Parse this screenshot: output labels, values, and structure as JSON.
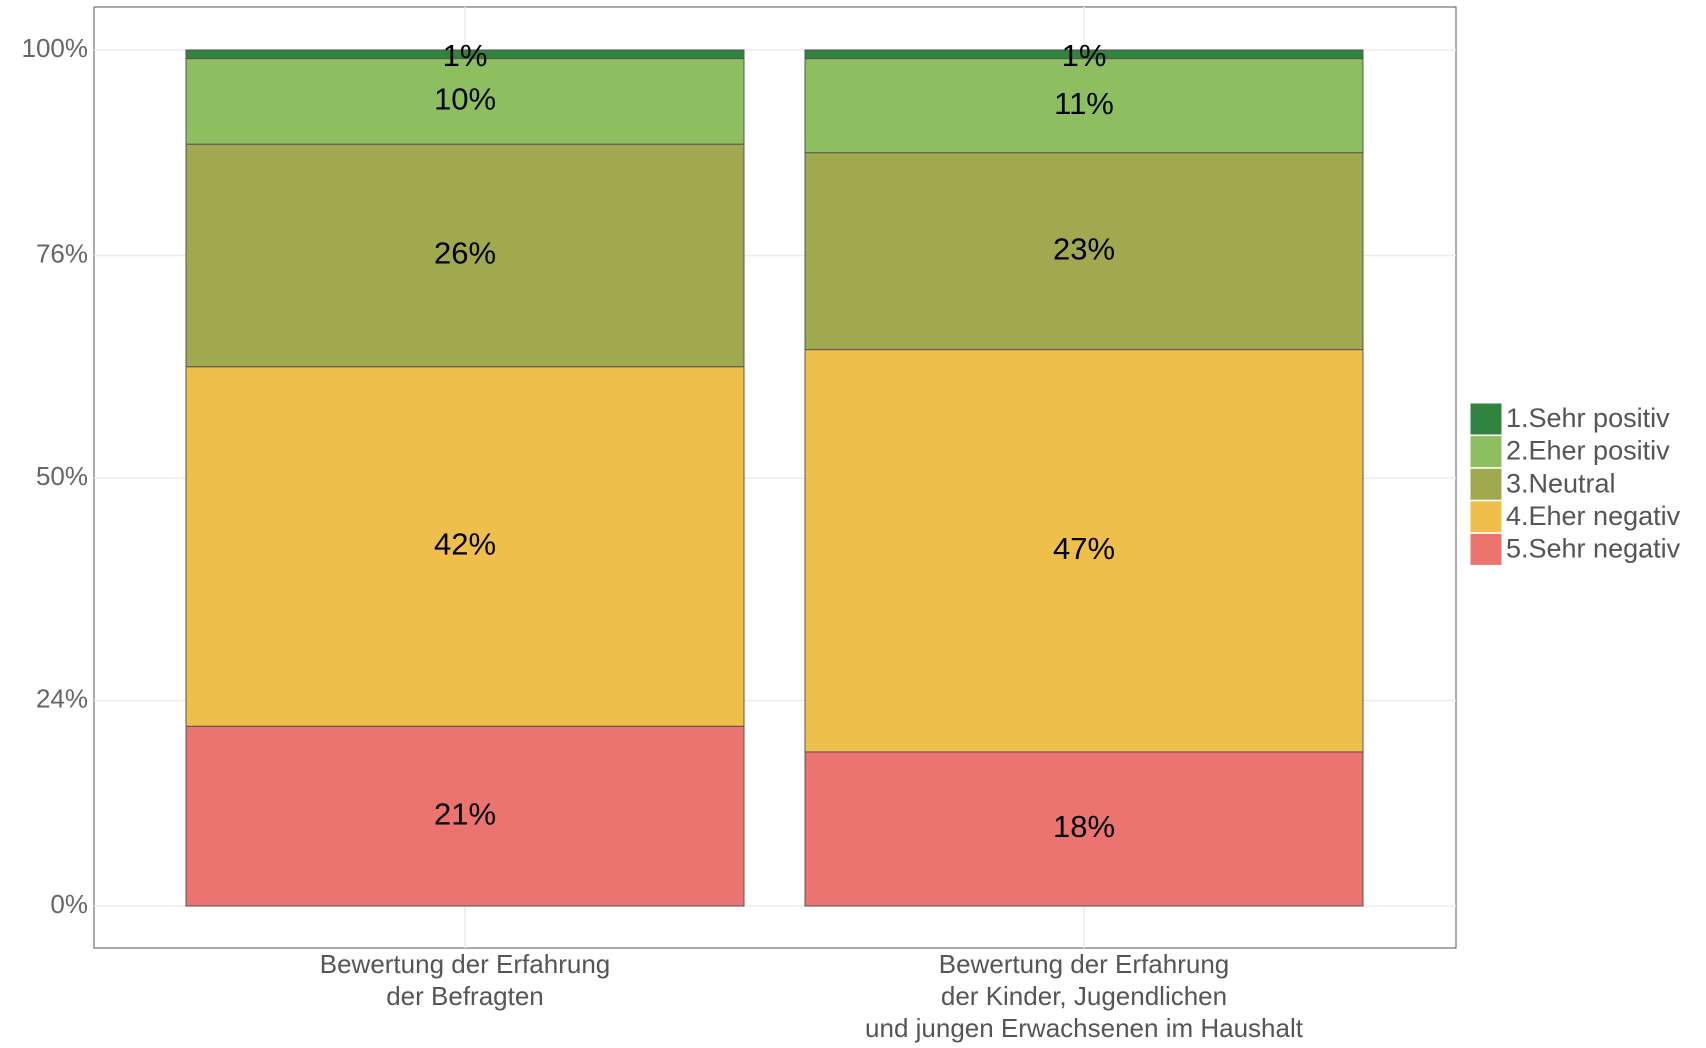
{
  "chart_data": {
    "type": "stacked_bar",
    "categories": [
      "Bewertung der Erfahrung\nder Befragten",
      "Bewertung der Erfahrung\nder Kinder, Jugendlichen\nund jungen Erwachsenen im Haushalt"
    ],
    "series": [
      {
        "name": "1.Sehr positiv",
        "color": "#31843f",
        "values": [
          1,
          1
        ],
        "value_labels": [
          "1%",
          "1%"
        ]
      },
      {
        "name": "2.Eher positiv",
        "color": "#8dbf60",
        "values": [
          10,
          11
        ],
        "value_labels": [
          "10%",
          "11%"
        ]
      },
      {
        "name": "3.Neutral",
        "color": "#a0a850",
        "values": [
          26,
          23
        ],
        "value_labels": [
          "26%",
          "23%"
        ]
      },
      {
        "name": "4.Eher negativ",
        "color": "#eec04b",
        "values": [
          42,
          47
        ],
        "value_labels": [
          "42%",
          "47%"
        ]
      },
      {
        "name": "5.Sehr negativ",
        "color": "#ec7470",
        "values": [
          21,
          18
        ],
        "value_labels": [
          "21%",
          "18%"
        ]
      }
    ],
    "ylim": [
      0,
      100
    ],
    "yticks": [
      {
        "value": 0,
        "label": "0%"
      },
      {
        "value": 24,
        "label": "24%"
      },
      {
        "value": 50,
        "label": "50%"
      },
      {
        "value": 76,
        "label": "76%"
      },
      {
        "value": 100,
        "label": "100%"
      }
    ],
    "grid": true,
    "legend": "right"
  }
}
